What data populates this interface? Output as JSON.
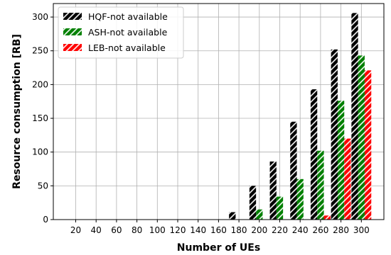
{
  "chart_data": {
    "type": "bar",
    "xlabel": "Number of UEs",
    "ylabel": "Resource consumption [RB]",
    "categories": [
      "20",
      "40",
      "60",
      "80",
      "100",
      "120",
      "140",
      "160",
      "180",
      "200",
      "220",
      "240",
      "260",
      "280",
      "300"
    ],
    "ylim": [
      0,
      320
    ],
    "yticks": [
      0,
      50,
      100,
      150,
      200,
      250,
      300
    ],
    "grid": true,
    "legend_position": "top-left",
    "bar_pattern": "hatched",
    "series": [
      {
        "name": "HQF-not available",
        "color": "#000000",
        "values": [
          0,
          0,
          0,
          0,
          0,
          0,
          0,
          0,
          11,
          50,
          86,
          145,
          193,
          252,
          306
        ]
      },
      {
        "name": "ASH-not available",
        "color": "#008000",
        "values": [
          0,
          0,
          0,
          0,
          0,
          0,
          0,
          0,
          0,
          15,
          34,
          60,
          102,
          176,
          243
        ]
      },
      {
        "name": "LEB-not available",
        "color": "#ff0000",
        "values": [
          0,
          0,
          0,
          0,
          0,
          0,
          0,
          0,
          0,
          0,
          0,
          0,
          6,
          120,
          221
        ]
      }
    ]
  }
}
